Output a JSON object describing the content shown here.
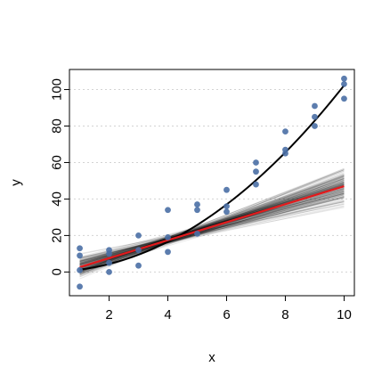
{
  "chart_data": {
    "type": "scatter",
    "title": "",
    "xlabel": "x",
    "ylabel": "y",
    "xlim": [
      0.65,
      10.35
    ],
    "ylim": [
      -13,
      111
    ],
    "xticks": [
      2,
      4,
      6,
      8,
      10
    ],
    "yticks": [
      0,
      20,
      40,
      60,
      80,
      100
    ],
    "grid": "horizontal-dashed",
    "points": [
      {
        "x": 1,
        "y": -8
      },
      {
        "x": 1,
        "y": 1
      },
      {
        "x": 1,
        "y": 9
      },
      {
        "x": 1,
        "y": 13
      },
      {
        "x": 2,
        "y": 0
      },
      {
        "x": 2,
        "y": 5
      },
      {
        "x": 2,
        "y": 10
      },
      {
        "x": 2,
        "y": 12
      },
      {
        "x": 3,
        "y": 3.5
      },
      {
        "x": 3,
        "y": 12
      },
      {
        "x": 3,
        "y": 20
      },
      {
        "x": 4,
        "y": 11
      },
      {
        "x": 4,
        "y": 19
      },
      {
        "x": 4,
        "y": 34
      },
      {
        "x": 5,
        "y": 21
      },
      {
        "x": 5,
        "y": 34
      },
      {
        "x": 5,
        "y": 37
      },
      {
        "x": 6,
        "y": 33
      },
      {
        "x": 6,
        "y": 36
      },
      {
        "x": 6,
        "y": 45
      },
      {
        "x": 7,
        "y": 48
      },
      {
        "x": 7,
        "y": 55
      },
      {
        "x": 7,
        "y": 60
      },
      {
        "x": 8,
        "y": 65
      },
      {
        "x": 8,
        "y": 67
      },
      {
        "x": 8,
        "y": 77
      },
      {
        "x": 9,
        "y": 80
      },
      {
        "x": 9,
        "y": 85
      },
      {
        "x": 9,
        "y": 91
      },
      {
        "x": 10,
        "y": 95
      },
      {
        "x": 10,
        "y": 103
      },
      {
        "x": 10,
        "y": 106
      }
    ],
    "true_curve": {
      "color": "#000000",
      "intercept": 0,
      "slope": 0,
      "quad": 1.02,
      "offset": 0.3
    },
    "fitted_line": {
      "color": "#e31a1c",
      "intercept": -2.3,
      "slope": 4.93
    },
    "posterior_lines": {
      "count": 160,
      "color": "#000000",
      "anchor_x": 4.2,
      "anchor_y": 18.4,
      "slope_mean": 4.93,
      "slope_sd": 1.05
    },
    "point_color": "#4a6fa5"
  }
}
